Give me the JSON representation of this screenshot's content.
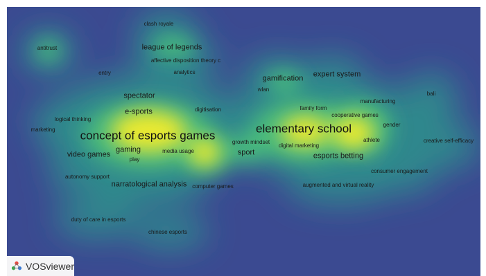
{
  "app": {
    "name": "VOSviewer"
  },
  "colors": {
    "background": "#3b4a91",
    "density_low": "#2f8f8c",
    "density_mid": "#4cc27a",
    "density_high": "#f2ec2c"
  },
  "view": "density-visualization",
  "terms": [
    {
      "label": "clash royale",
      "weight": "small"
    },
    {
      "label": "antitrust",
      "weight": "small"
    },
    {
      "label": "league of legends",
      "weight": "medium"
    },
    {
      "label": "affective disposition theory c",
      "weight": "small"
    },
    {
      "label": "entry",
      "weight": "small"
    },
    {
      "label": "analytics",
      "weight": "small"
    },
    {
      "label": "gamification",
      "weight": "medium"
    },
    {
      "label": "expert system",
      "weight": "medium"
    },
    {
      "label": "wlan",
      "weight": "small"
    },
    {
      "label": "bali",
      "weight": "small"
    },
    {
      "label": "spectator",
      "weight": "medium"
    },
    {
      "label": "manufacturing",
      "weight": "small"
    },
    {
      "label": "logical thinking",
      "weight": "small"
    },
    {
      "label": "e-sports",
      "weight": "medium"
    },
    {
      "label": "digitisation",
      "weight": "small"
    },
    {
      "label": "family form",
      "weight": "small"
    },
    {
      "label": "cooperative games",
      "weight": "small"
    },
    {
      "label": "gender",
      "weight": "small"
    },
    {
      "label": "marketing",
      "weight": "small"
    },
    {
      "label": "concept of esports games",
      "weight": "large"
    },
    {
      "label": "elementary school",
      "weight": "large"
    },
    {
      "label": "growth mindset",
      "weight": "small"
    },
    {
      "label": "athlete",
      "weight": "small"
    },
    {
      "label": "creative self-efficacy",
      "weight": "small"
    },
    {
      "label": "digital marketing",
      "weight": "small"
    },
    {
      "label": "gaming",
      "weight": "medium"
    },
    {
      "label": "video games",
      "weight": "medium"
    },
    {
      "label": "media usage",
      "weight": "small"
    },
    {
      "label": "sport",
      "weight": "medium"
    },
    {
      "label": "esports betting",
      "weight": "medium"
    },
    {
      "label": "play",
      "weight": "small"
    },
    {
      "label": "consumer engagement",
      "weight": "small"
    },
    {
      "label": "autonomy support",
      "weight": "small"
    },
    {
      "label": "narratological analysis",
      "weight": "medium"
    },
    {
      "label": "computer games",
      "weight": "small"
    },
    {
      "label": "augmented and virtual reality",
      "weight": "small"
    },
    {
      "label": "duty of care in esports",
      "weight": "small"
    },
    {
      "label": "chinese esports",
      "weight": "small"
    }
  ]
}
